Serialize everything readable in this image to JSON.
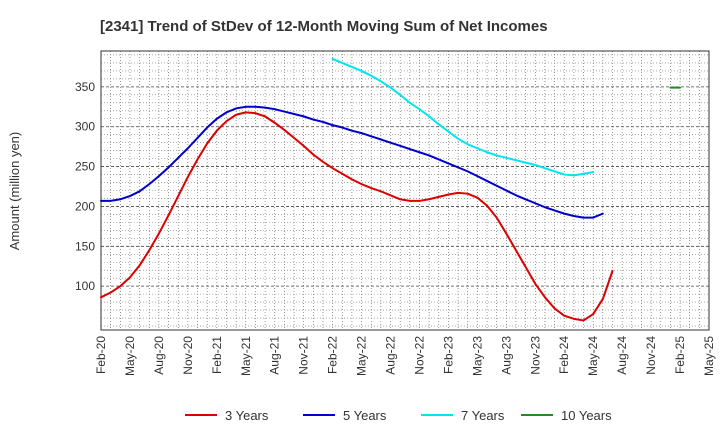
{
  "chart_data": {
    "type": "line",
    "title": "[2341]  Trend of StDev of 12-Month Moving Sum of Net Incomes",
    "ylabel": "Amount (million yen)",
    "xlabel": "",
    "ylim": [
      45,
      395
    ],
    "yticks": [
      100,
      150,
      200,
      250,
      300,
      350
    ],
    "xtick_labels": [
      "Feb-20",
      "May-20",
      "Aug-20",
      "Nov-20",
      "Feb-21",
      "May-21",
      "Aug-21",
      "Nov-21",
      "Feb-22",
      "May-22",
      "Aug-22",
      "Nov-22",
      "Feb-23",
      "May-23",
      "Aug-23",
      "Nov-23",
      "Feb-24",
      "May-24",
      "Aug-24",
      "Nov-24",
      "Feb-25",
      "May-25"
    ],
    "grid": true,
    "legend_position": "bottom",
    "x": [
      "Feb-20",
      "Mar-20",
      "Apr-20",
      "May-20",
      "Jun-20",
      "Jul-20",
      "Aug-20",
      "Sep-20",
      "Oct-20",
      "Nov-20",
      "Dec-20",
      "Jan-21",
      "Feb-21",
      "Mar-21",
      "Apr-21",
      "May-21",
      "Jun-21",
      "Jul-21",
      "Aug-21",
      "Sep-21",
      "Oct-21",
      "Nov-21",
      "Dec-21",
      "Jan-22",
      "Feb-22",
      "Mar-22",
      "Apr-22",
      "May-22",
      "Jun-22",
      "Jul-22",
      "Aug-22",
      "Sep-22",
      "Oct-22",
      "Nov-22",
      "Dec-22",
      "Jan-23",
      "Feb-23",
      "Mar-23",
      "Apr-23",
      "May-23",
      "Jun-23",
      "Jul-23",
      "Aug-23",
      "Sep-23",
      "Oct-23",
      "Nov-23",
      "Dec-23",
      "Jan-24",
      "Feb-24",
      "Mar-24",
      "Apr-24",
      "May-24",
      "Jun-24",
      "Jul-24",
      "Aug-24",
      "Sep-24",
      "Oct-24",
      "Nov-24",
      "Dec-24",
      "Jan-25",
      "Feb-25"
    ],
    "series": [
      {
        "name": "3 Years",
        "color": "#dd0000",
        "values": [
          86,
          92,
          100,
          111,
          126,
          145,
          166,
          189,
          213,
          237,
          259,
          279,
          295,
          307,
          315,
          318,
          317,
          313,
          305,
          296,
          286,
          276,
          265,
          256,
          248,
          241,
          234,
          228,
          223,
          219,
          214,
          209,
          207,
          207,
          209,
          212,
          215,
          217,
          216,
          211,
          201,
          186,
          166,
          145,
          124,
          103,
          86,
          72,
          63,
          59,
          57,
          65,
          84,
          119,
          null,
          null,
          null,
          null,
          null,
          null,
          null
        ]
      },
      {
        "name": "5 Years",
        "color": "#0000cc",
        "values": [
          207,
          207,
          209,
          213,
          219,
          228,
          238,
          249,
          261,
          273,
          286,
          299,
          310,
          318,
          323,
          325,
          325,
          324,
          322,
          319,
          316,
          313,
          309,
          306,
          302,
          299,
          295,
          292,
          288,
          284,
          280,
          276,
          272,
          268,
          264,
          259,
          254,
          249,
          244,
          238,
          232,
          226,
          220,
          214,
          209,
          204,
          199,
          195,
          191,
          188,
          186,
          186,
          191,
          null,
          null,
          null,
          null,
          null,
          null,
          null,
          null
        ]
      },
      {
        "name": "7 Years",
        "color": "#00e5ee",
        "values": [
          null,
          null,
          null,
          null,
          null,
          null,
          null,
          null,
          null,
          null,
          null,
          null,
          null,
          null,
          null,
          null,
          null,
          null,
          null,
          null,
          null,
          null,
          null,
          null,
          385,
          380,
          375,
          370,
          364,
          357,
          349,
          340,
          330,
          322,
          313,
          303,
          294,
          285,
          278,
          273,
          268,
          264,
          261,
          258,
          255,
          252,
          248,
          244,
          240,
          239,
          241,
          243,
          null,
          null,
          null,
          null,
          null,
          null,
          null,
          null,
          null
        ]
      },
      {
        "name": "10 Years",
        "color": "#228b22",
        "values": [
          null,
          null,
          null,
          null,
          null,
          null,
          null,
          null,
          null,
          null,
          null,
          null,
          null,
          null,
          null,
          null,
          null,
          null,
          null,
          null,
          null,
          null,
          null,
          null,
          null,
          null,
          null,
          null,
          null,
          null,
          null,
          null,
          null,
          null,
          null,
          null,
          null,
          null,
          null,
          null,
          null,
          null,
          null,
          null,
          null,
          null,
          null,
          null,
          null,
          null,
          null,
          null,
          null,
          null,
          null,
          null,
          null,
          null,
          null,
          349,
          349
        ]
      }
    ]
  }
}
